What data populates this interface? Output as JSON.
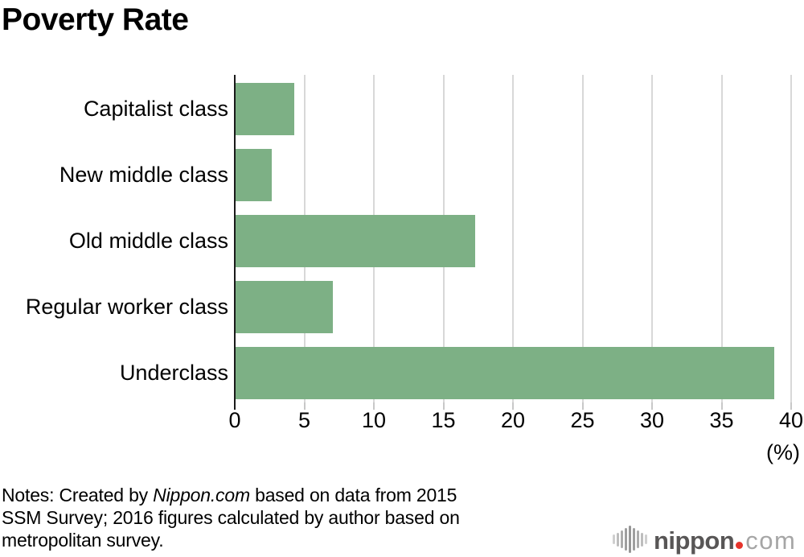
{
  "title": "Poverty Rate",
  "chart_data": {
    "type": "bar",
    "orientation": "horizontal",
    "title": "Poverty Rate",
    "categories": [
      "Capitalist class",
      "New middle class",
      "Old middle class",
      "Regular worker class",
      "Underclass"
    ],
    "values": [
      4.2,
      2.6,
      17.2,
      7.0,
      38.7
    ],
    "xlabel": "(%)",
    "xlim": [
      0,
      40
    ],
    "xticks": [
      0,
      5,
      10,
      15,
      20,
      25,
      30,
      35,
      40
    ],
    "grid": true,
    "legend": "none",
    "bar_color": "#7db085"
  },
  "notes": {
    "line1_prefix": "Notes: Created by ",
    "line1_italic": "Nippon.com",
    "line1_suffix": " based on data from 2015",
    "line2": "SSM Survey; 2016 figures calculated by author based on",
    "line3": "metropolitan survey."
  },
  "logo": {
    "name": "nippon",
    "tld": "com",
    "dot_color": "#e6332b"
  },
  "colors": {
    "bar": "#7db085",
    "gridline": "#d8d8d8",
    "axis": "#1a1a1a",
    "tick": "#c8c8c8",
    "text": "#000000"
  }
}
